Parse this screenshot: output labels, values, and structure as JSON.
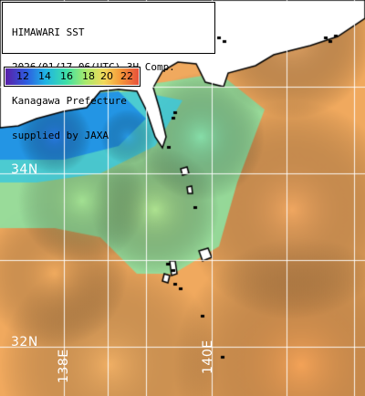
{
  "header": {
    "line1": "HIMAWARI SST",
    "line2": "2026/01/17 06(UTC) 3H Comp.",
    "line3": "Kanagawa Prefecture",
    "line4": "supplied by JAXA"
  },
  "legend": {
    "ticks": [
      "12",
      "14",
      "16",
      "18",
      "20",
      "22"
    ],
    "colors": [
      "#2d3fe0",
      "#1fb4e4",
      "#3fe0a6",
      "#a8ea6c",
      "#f59a3a",
      "#e8503a"
    ]
  },
  "grid_labels": {
    "lat_34": "34N",
    "lat_32": "32N",
    "lon_138": "138E",
    "lon_140": "140E"
  },
  "palette": {
    "land": "#ffffff",
    "coast": "#000000",
    "cold": "#1f9fe6",
    "mid": "#86e6a0",
    "warm": "#f0a95e"
  }
}
